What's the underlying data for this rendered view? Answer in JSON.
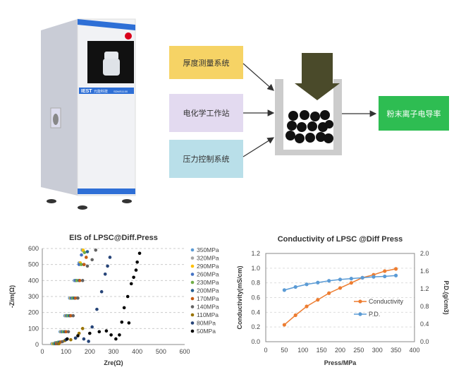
{
  "machine": {
    "brand": "IEST",
    "brand_cn": "元能科技",
    "model": "SDMS1100"
  },
  "flow": {
    "inputs": [
      {
        "label": "厚度测量系统",
        "color": "#f6d365"
      },
      {
        "label": "电化学工作站",
        "color": "#e3daf0"
      },
      {
        "label": "压力控制系统",
        "color": "#b9dfe9"
      }
    ],
    "output": {
      "label": "粉末离子电导率",
      "color": "#2ebd52"
    }
  },
  "chart_data": [
    {
      "type": "scatter",
      "title": "EIS of LPSC@Diff.Press",
      "xlabel": "Zre(Ω)",
      "ylabel": "-Zim(Ω)",
      "xlim": [
        0,
        600
      ],
      "ylim": [
        0,
        600
      ],
      "xticks": [
        0,
        100,
        200,
        300,
        400,
        500,
        600
      ],
      "yticks": [
        0,
        100,
        200,
        300,
        400,
        500,
        600
      ],
      "grid": "horizontal dashed",
      "legend": "right",
      "series": [
        {
          "name": "350MPa",
          "color": "#5b9bd5",
          "points": [
            [
              40,
              5
            ],
            [
              55,
              12
            ],
            [
              75,
              80
            ],
            [
              95,
              180
            ],
            [
              115,
              290
            ],
            [
              135,
              400
            ],
            [
              155,
              510
            ],
            [
              168,
              590
            ]
          ]
        },
        {
          "name": "320MPa",
          "color": "#a5a5a5",
          "points": [
            [
              42,
              5
            ],
            [
              58,
              12
            ],
            [
              78,
              80
            ],
            [
              98,
              180
            ],
            [
              118,
              290
            ],
            [
              138,
              400
            ],
            [
              158,
              510
            ],
            [
              172,
              585
            ]
          ]
        },
        {
          "name": "290MPa",
          "color": "#ffc000",
          "points": [
            [
              45,
              5
            ],
            [
              60,
              12
            ],
            [
              80,
              80
            ],
            [
              100,
              180
            ],
            [
              120,
              290
            ],
            [
              140,
              400
            ],
            [
              160,
              510
            ],
            [
              172,
              590
            ]
          ]
        },
        {
          "name": "260MPa",
          "color": "#4472c4",
          "points": [
            [
              48,
              5
            ],
            [
              62,
              12
            ],
            [
              82,
              80
            ],
            [
              102,
              180
            ],
            [
              122,
              290
            ],
            [
              140,
              400
            ],
            [
              155,
              500
            ],
            [
              165,
              560
            ]
          ]
        },
        {
          "name": "230MPa",
          "color": "#70ad47",
          "points": [
            [
              50,
              5
            ],
            [
              66,
              14
            ],
            [
              88,
              80
            ],
            [
              108,
              180
            ],
            [
              128,
              290
            ],
            [
              146,
              400
            ],
            [
              164,
              500
            ],
            [
              178,
              575
            ]
          ]
        },
        {
          "name": "200MPa",
          "color": "#255e91",
          "points": [
            [
              55,
              5
            ],
            [
              72,
              15
            ],
            [
              95,
              80
            ],
            [
              115,
              180
            ],
            [
              135,
              290
            ],
            [
              155,
              400
            ],
            [
              175,
              500
            ],
            [
              190,
              580
            ]
          ]
        },
        {
          "name": "170MPa",
          "color": "#c55a11",
          "points": [
            [
              60,
              5
            ],
            [
              78,
              16
            ],
            [
              100,
              80
            ],
            [
              120,
              180
            ],
            [
              140,
              290
            ],
            [
              158,
              400
            ],
            [
              176,
              500
            ],
            [
              185,
              545
            ]
          ]
        },
        {
          "name": "140MPa",
          "color": "#636363",
          "points": [
            [
              65,
              5
            ],
            [
              85,
              18
            ],
            [
              110,
              80
            ],
            [
              130,
              180
            ],
            [
              150,
              290
            ],
            [
              170,
              400
            ],
            [
              190,
              490
            ],
            [
              210,
              530
            ],
            [
              225,
              590
            ]
          ]
        },
        {
          "name": "110MPa",
          "color": "#997300",
          "points": [
            [
              70,
              5
            ],
            [
              95,
              25
            ],
            [
              120,
              30
            ],
            [
              140,
              40
            ],
            [
              155,
              70
            ],
            [
              170,
              100
            ]
          ]
        },
        {
          "name": "80MPa",
          "color": "#264478",
          "points": [
            [
              100,
              30
            ],
            [
              140,
              40
            ],
            [
              175,
              35
            ],
            [
              195,
              20
            ],
            [
              210,
              110
            ],
            [
              230,
              220
            ],
            [
              250,
              330
            ],
            [
              265,
              440
            ],
            [
              275,
              490
            ],
            [
              285,
              545
            ]
          ]
        },
        {
          "name": "50MPa",
          "color": "#000000",
          "points": [
            [
              105,
              35
            ],
            [
              150,
              55
            ],
            [
              200,
              70
            ],
            [
              240,
              80
            ],
            [
              270,
              85
            ],
            [
              290,
              60
            ],
            [
              310,
              35
            ],
            [
              325,
              60
            ],
            [
              335,
              140
            ],
            [
              345,
              230
            ],
            [
              360,
              300
            ],
            [
              375,
              380
            ],
            [
              385,
              420
            ],
            [
              395,
              465
            ],
            [
              400,
              515
            ],
            [
              410,
              570
            ],
            [
              365,
              135
            ]
          ]
        }
      ]
    },
    {
      "type": "line",
      "title": "Conductivity of LPSC @Diff Press",
      "xlabel": "Press/MPa",
      "ylabel": "Conductivity(mS/cm)",
      "y2label": "P.D.(g/cm3)",
      "xlim": [
        0,
        400
      ],
      "ylim": [
        0,
        1.2
      ],
      "y2lim": [
        0,
        2.0
      ],
      "xticks": [
        0,
        50,
        100,
        150,
        200,
        250,
        300,
        350,
        400
      ],
      "yticks": [
        "0.0",
        "0.2",
        "0.4",
        "0.6",
        "0.8",
        "1.0",
        "1.2"
      ],
      "y2ticks": [
        "0.0",
        "0.4",
        "0.8",
        "1.2",
        "1.6",
        "2.0"
      ],
      "grid": "horizontal dashed",
      "legend": "center-right",
      "x": [
        50,
        80,
        110,
        140,
        170,
        200,
        230,
        260,
        290,
        320,
        350
      ],
      "series": [
        {
          "name": "Conductivity",
          "axis": "left",
          "color": "#ed7d31",
          "values": [
            0.23,
            0.36,
            0.48,
            0.57,
            0.66,
            0.73,
            0.8,
            0.87,
            0.91,
            0.96,
            0.99
          ]
        },
        {
          "name": "P.D.",
          "axis": "right",
          "color": "#5b9bd5",
          "values": [
            1.17,
            1.24,
            1.3,
            1.34,
            1.38,
            1.41,
            1.43,
            1.45,
            1.47,
            1.48,
            1.5
          ]
        }
      ]
    }
  ]
}
